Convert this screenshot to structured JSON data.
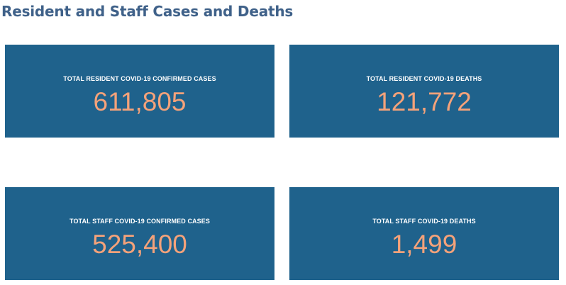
{
  "page": {
    "title": "Resident and Staff Cases and Deaths"
  },
  "colors": {
    "title": "#3f6189",
    "card_background": "#1f628c",
    "card_label": "#ffffff",
    "card_value": "#f4a27a"
  },
  "cards": [
    {
      "label": "TOTAL RESIDENT COVID-19 CONFIRMED CASES",
      "value": "611,805"
    },
    {
      "label": "TOTAL RESIDENT COVID-19 DEATHS",
      "value": "121,772"
    },
    {
      "label": "TOTAL STAFF COVID-19 CONFIRMED CASES",
      "value": "525,400"
    },
    {
      "label": "TOTAL STAFF COVID-19 DEATHS",
      "value": "1,499"
    }
  ]
}
